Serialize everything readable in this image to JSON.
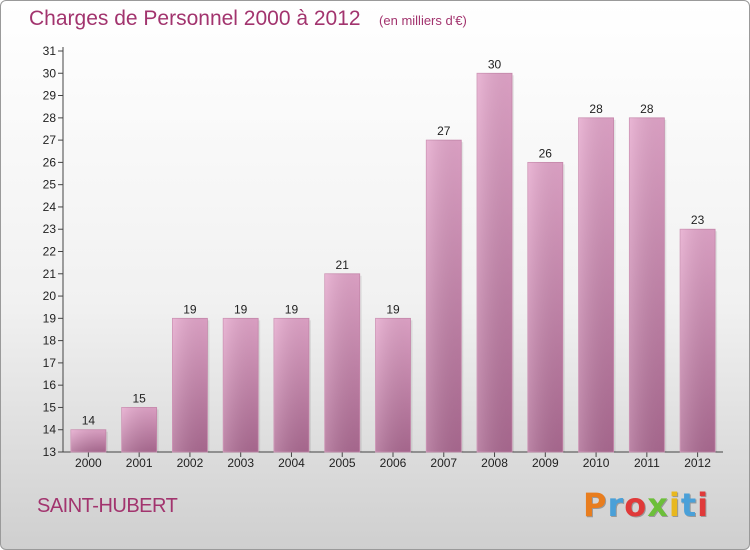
{
  "header": {
    "title": "Charges de Personnel 2000 à 2012",
    "unit": "(en milliers d'€)"
  },
  "footer": {
    "place": "SAINT-HUBERT",
    "brand": "Proxiti"
  },
  "brand_colors": [
    "#e87d1e",
    "#4aa0d8",
    "#e03a3a",
    "#6cbf3a",
    "#e8b81e",
    "#4aa0d8",
    "#e03a3a"
  ],
  "chart_data": {
    "type": "bar",
    "title": "Charges de Personnel 2000 à 2012",
    "subtitle": "(en milliers d'€)",
    "categories": [
      "2000",
      "2001",
      "2002",
      "2003",
      "2004",
      "2005",
      "2006",
      "2007",
      "2008",
      "2009",
      "2010",
      "2011",
      "2012"
    ],
    "values": [
      14,
      15,
      19,
      19,
      19,
      21,
      19,
      27,
      30,
      26,
      28,
      28,
      23
    ],
    "ylim": [
      13,
      31
    ],
    "yticks": [
      13,
      14,
      15,
      16,
      17,
      18,
      19,
      20,
      21,
      22,
      23,
      24,
      25,
      26,
      27,
      28,
      29,
      30,
      31
    ],
    "grid": false,
    "bar_color": "#d58ab4"
  }
}
